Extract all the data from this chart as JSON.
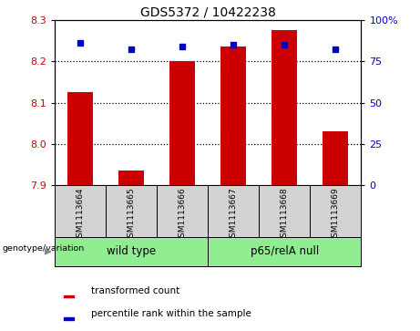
{
  "title": "GDS5372 / 10422238",
  "samples": [
    "GSM1113664",
    "GSM1113665",
    "GSM1113666",
    "GSM1113667",
    "GSM1113668",
    "GSM1113669"
  ],
  "red_values": [
    8.125,
    7.935,
    8.2,
    8.235,
    8.275,
    8.03
  ],
  "blue_values": [
    86,
    82,
    84,
    85,
    85,
    82
  ],
  "ylim_left": [
    7.9,
    8.3
  ],
  "ylim_right": [
    0,
    100
  ],
  "yticks_left": [
    7.9,
    8.0,
    8.1,
    8.2,
    8.3
  ],
  "yticks_right": [
    0,
    25,
    50,
    75,
    100
  ],
  "group1_label": "wild type",
  "group2_label": "p65/relA null",
  "group_color": "#90ee90",
  "genotype_label": "genotype/variation",
  "red_color": "#cc0000",
  "blue_color": "#0000cc",
  "bar_width": 0.5,
  "sample_box_color": "#d3d3d3",
  "legend_red": "transformed count",
  "legend_blue": "percentile rank within the sample",
  "dotted_grid": [
    8.0,
    8.1,
    8.2
  ]
}
